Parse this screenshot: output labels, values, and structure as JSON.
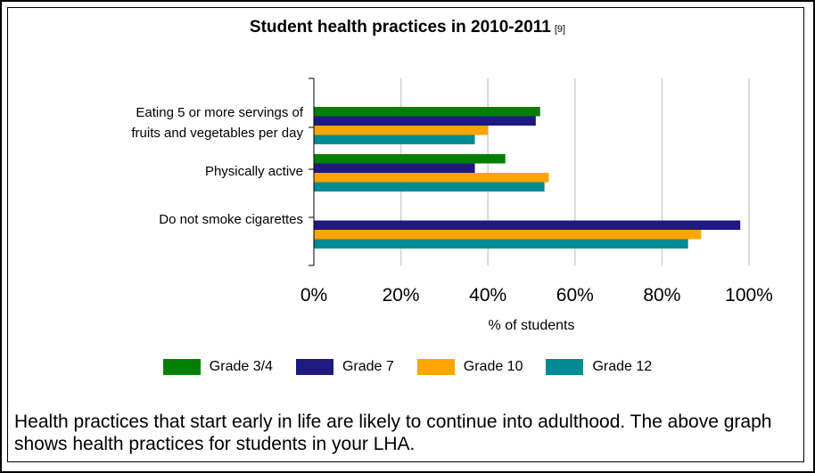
{
  "title": "Student health practices in 2010-2011",
  "title_ref": "[9]",
  "caption": "Health practices that start early in life are likely to continue into adulthood. The above graph shows health practices for students in your LHA.",
  "colors": {
    "grade_34": "#008000",
    "grade_7": "#1f1a80",
    "grade_10": "#ffa500",
    "grade_12": "#008b94"
  },
  "chart_data": {
    "type": "bar",
    "orientation": "horizontal",
    "title": "Student health practices in 2010-2011",
    "xlabel": "% of students",
    "ylabel": "",
    "xlim": [
      0,
      100
    ],
    "xticks": [
      "0%",
      "20%",
      "40%",
      "60%",
      "80%",
      "100%"
    ],
    "categories": [
      [
        "Eating 5 or more servings of",
        "fruits and vegetables per day"
      ],
      [
        "Physically active"
      ],
      [
        "Do not smoke cigarettes"
      ]
    ],
    "series": [
      {
        "name": "Grade 3/4",
        "color": "#008000",
        "values": [
          52,
          44,
          null
        ]
      },
      {
        "name": "Grade 7",
        "color": "#1f1a80",
        "values": [
          51,
          37,
          98
        ]
      },
      {
        "name": "Grade 10",
        "color": "#ffa500",
        "values": [
          40,
          54,
          89
        ]
      },
      {
        "name": "Grade 12",
        "color": "#008b94",
        "values": [
          37,
          53,
          86
        ]
      }
    ],
    "grid": true,
    "legend_position": "bottom"
  }
}
